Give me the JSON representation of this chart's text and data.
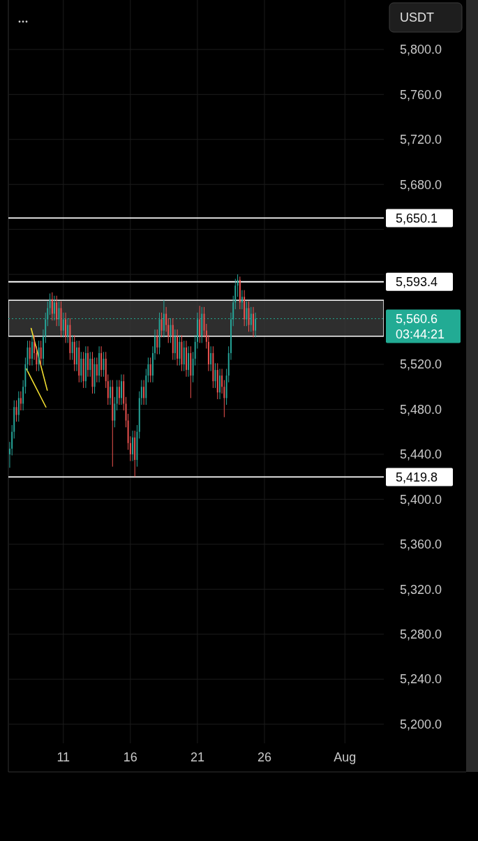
{
  "chart_data": {
    "type": "candlestick",
    "ylabel": "USDT",
    "x": [
      7,
      7.17,
      7.33,
      7.5,
      7.67,
      7.83,
      8,
      8.17,
      8.33,
      8.5,
      8.67,
      8.83,
      9,
      9.17,
      9.33,
      9.5,
      9.67,
      9.83,
      10,
      10.17,
      10.33,
      10.5,
      10.67,
      10.83,
      11,
      11.17,
      11.33,
      11.5,
      11.67,
      11.83,
      12,
      12.17,
      12.33,
      12.5,
      12.67,
      12.83,
      13,
      13.17,
      13.33,
      13.5,
      13.67,
      13.83,
      14,
      14.17,
      14.33,
      14.5,
      14.67,
      14.83,
      15,
      15.17,
      15.33,
      15.5,
      15.67,
      15.83,
      16,
      16.17,
      16.33,
      16.5,
      16.67,
      16.83,
      17,
      17.17,
      17.33,
      17.5,
      17.67,
      17.83,
      18,
      18.17,
      18.33,
      18.5,
      18.67,
      18.83,
      19,
      19.17,
      19.33,
      19.5,
      19.67,
      19.83,
      20,
      20.17,
      20.33,
      20.5,
      20.67,
      20.83,
      21,
      21.17,
      21.33,
      21.5,
      21.67,
      21.83,
      22,
      22.17,
      22.33,
      22.5,
      22.67,
      22.83,
      23,
      23.17,
      23.33,
      23.5,
      23.67,
      23.83,
      24,
      24.17,
      24.33,
      24.5,
      24.67,
      24.83,
      25,
      25.17,
      25.33
    ],
    "ohlc": [
      [
        5440,
        5451,
        5428,
        5445
      ],
      [
        5445,
        5466,
        5439,
        5460
      ],
      [
        5460,
        5488,
        5454,
        5482
      ],
      [
        5482,
        5488,
        5469,
        5475
      ],
      [
        5475,
        5496,
        5469,
        5490
      ],
      [
        5490,
        5496,
        5479,
        5485
      ],
      [
        5485,
        5506,
        5479,
        5500
      ],
      [
        5500,
        5526,
        5494,
        5520
      ],
      [
        5520,
        5541,
        5514,
        5535
      ],
      [
        5535,
        5541,
        5519,
        5525
      ],
      [
        5525,
        5546,
        5519,
        5540
      ],
      [
        5540,
        5546,
        5524,
        5530
      ],
      [
        5530,
        5536,
        5514,
        5520
      ],
      [
        5520,
        5541,
        5514,
        5535
      ],
      [
        5535,
        5541,
        5519,
        5525
      ],
      [
        5525,
        5551,
        5519,
        5545
      ],
      [
        5545,
        5566,
        5539,
        5560
      ],
      [
        5560,
        5576,
        5554,
        5570
      ],
      [
        5570,
        5583,
        5564,
        5578
      ],
      [
        5578,
        5584,
        5559,
        5565
      ],
      [
        5565,
        5581,
        5559,
        5575
      ],
      [
        5575,
        5581,
        5554,
        5560
      ],
      [
        5560,
        5576,
        5554,
        5570
      ],
      [
        5570,
        5576,
        5544,
        5550
      ],
      [
        5550,
        5566,
        5544,
        5560
      ],
      [
        5560,
        5566,
        5539,
        5545
      ],
      [
        5545,
        5561,
        5539,
        5555
      ],
      [
        5555,
        5561,
        5524,
        5530
      ],
      [
        5530,
        5546,
        5524,
        5540
      ],
      [
        5540,
        5546,
        5514,
        5520
      ],
      [
        5520,
        5541,
        5514,
        5535
      ],
      [
        5535,
        5541,
        5504,
        5510
      ],
      [
        5510,
        5531,
        5504,
        5525
      ],
      [
        5525,
        5531,
        5499,
        5505
      ],
      [
        5505,
        5536,
        5499,
        5530
      ],
      [
        5530,
        5536,
        5509,
        5515
      ],
      [
        5515,
        5531,
        5509,
        5525
      ],
      [
        5525,
        5531,
        5494,
        5500
      ],
      [
        5500,
        5526,
        5494,
        5520
      ],
      [
        5520,
        5526,
        5504,
        5510
      ],
      [
        5510,
        5536,
        5504,
        5530
      ],
      [
        5530,
        5536,
        5509,
        5515
      ],
      [
        5515,
        5531,
        5509,
        5525
      ],
      [
        5525,
        5531,
        5499,
        5505
      ],
      [
        5505,
        5511,
        5484,
        5490
      ],
      [
        5490,
        5506,
        5484,
        5500
      ],
      [
        5500,
        5506,
        5429,
        5470
      ],
      [
        5470,
        5491,
        5464,
        5485
      ],
      [
        5485,
        5506,
        5479,
        5500
      ],
      [
        5500,
        5506,
        5484,
        5490
      ],
      [
        5490,
        5511,
        5484,
        5505
      ],
      [
        5505,
        5511,
        5479,
        5485
      ],
      [
        5485,
        5491,
        5464,
        5470
      ],
      [
        5470,
        5476,
        5444,
        5450
      ],
      [
        5450,
        5456,
        5434,
        5440
      ],
      [
        5440,
        5461,
        5434,
        5455
      ],
      [
        5455,
        5461,
        5420,
        5435
      ],
      [
        5435,
        5466,
        5429,
        5460
      ],
      [
        5460,
        5496,
        5454,
        5490
      ],
      [
        5490,
        5506,
        5484,
        5500
      ],
      [
        5500,
        5506,
        5484,
        5490
      ],
      [
        5490,
        5516,
        5484,
        5510
      ],
      [
        5510,
        5526,
        5504,
        5520
      ],
      [
        5520,
        5526,
        5504,
        5510
      ],
      [
        5510,
        5536,
        5504,
        5530
      ],
      [
        5530,
        5551,
        5524,
        5545
      ],
      [
        5545,
        5551,
        5529,
        5535
      ],
      [
        5535,
        5566,
        5529,
        5560
      ],
      [
        5560,
        5566,
        5544,
        5550
      ],
      [
        5550,
        5577,
        5544,
        5565
      ],
      [
        5565,
        5571,
        5549,
        5555
      ],
      [
        5555,
        5561,
        5539,
        5545
      ],
      [
        5545,
        5561,
        5539,
        5555
      ],
      [
        5555,
        5561,
        5524,
        5530
      ],
      [
        5530,
        5551,
        5524,
        5545
      ],
      [
        5545,
        5551,
        5519,
        5525
      ],
      [
        5525,
        5546,
        5519,
        5540
      ],
      [
        5540,
        5546,
        5514,
        5520
      ],
      [
        5520,
        5541,
        5514,
        5535
      ],
      [
        5535,
        5541,
        5509,
        5515
      ],
      [
        5515,
        5536,
        5509,
        5530
      ],
      [
        5530,
        5536,
        5490,
        5510
      ],
      [
        5510,
        5531,
        5504,
        5525
      ],
      [
        5525,
        5546,
        5519,
        5540
      ],
      [
        5540,
        5566,
        5534,
        5560
      ],
      [
        5560,
        5572,
        5539,
        5545
      ],
      [
        5545,
        5571,
        5539,
        5565
      ],
      [
        5565,
        5571,
        5544,
        5550
      ],
      [
        5550,
        5556,
        5534,
        5540
      ],
      [
        5540,
        5546,
        5514,
        5520
      ],
      [
        5520,
        5536,
        5514,
        5530
      ],
      [
        5530,
        5536,
        5499,
        5505
      ],
      [
        5505,
        5521,
        5499,
        5515
      ],
      [
        5515,
        5521,
        5489,
        5495
      ],
      [
        5495,
        5516,
        5489,
        5510
      ],
      [
        5510,
        5516,
        5494,
        5500
      ],
      [
        5500,
        5506,
        5473,
        5490
      ],
      [
        5490,
        5516,
        5484,
        5510
      ],
      [
        5510,
        5536,
        5504,
        5530
      ],
      [
        5530,
        5566,
        5524,
        5560
      ],
      [
        5560,
        5581,
        5554,
        5575
      ],
      [
        5575,
        5596,
        5569,
        5590
      ],
      [
        5590,
        5600,
        5580,
        5595
      ],
      [
        5595,
        5598,
        5569,
        5575
      ],
      [
        5575,
        5586,
        5569,
        5580
      ],
      [
        5580,
        5586,
        5554,
        5560
      ],
      [
        5560,
        5576,
        5554,
        5570
      ],
      [
        5570,
        5576,
        5549,
        5555
      ],
      [
        5555,
        5571,
        5549,
        5565
      ],
      [
        5565,
        5571,
        5544,
        5550
      ],
      [
        5550,
        5566,
        5544,
        5560.6
      ]
    ],
    "series": [
      {
        "type": "line",
        "color": "#f5e132",
        "x": [
          8.6,
          9.8
        ],
        "values": [
          5552,
          5497
        ]
      },
      {
        "type": "line",
        "color": "#f5e132",
        "x": [
          8.24,
          9.7
        ],
        "values": [
          5516,
          5482
        ]
      }
    ],
    "xlim": [
      6.9,
      34.9
    ],
    "xticks": [
      11,
      16,
      21,
      26,
      {
        "value": 32,
        "label": "Aug"
      }
    ],
    "ylim": [
      5183,
      5844
    ],
    "yticks": [
      {
        "value": 5800,
        "label": "5,800.0"
      },
      {
        "value": 5760,
        "label": "5,760.0"
      },
      {
        "value": 5720,
        "label": "5,720.0"
      },
      {
        "value": 5680,
        "label": "5,680.0"
      },
      {
        "value": 5640,
        "label": null
      },
      {
        "value": 5600,
        "label": null
      },
      {
        "value": 5520,
        "label": "5,520.0"
      },
      {
        "value": 5480,
        "label": "5,480.0"
      },
      {
        "value": 5440,
        "label": "5,440.0"
      },
      {
        "value": 5400,
        "label": "5,400.0"
      },
      {
        "value": 5360,
        "label": "5,360.0"
      },
      {
        "value": 5320,
        "label": "5,320.0"
      },
      {
        "value": 5280,
        "label": "5,280.0"
      },
      {
        "value": 5240,
        "label": "5,240.0"
      },
      {
        "value": 5200,
        "label": "5,200.0"
      }
    ],
    "grid": true,
    "ref_lines": [
      {
        "axis": "y",
        "value": 5650.1,
        "label": "5,650.1",
        "color": "#ffffff"
      },
      {
        "axis": "y",
        "value": 5593.4,
        "label": "5,593.4",
        "color": "#ffffff"
      },
      {
        "axis": "y",
        "value": 5419.8,
        "label": "5,419.8",
        "color": "#ffffff"
      },
      {
        "axis": "y",
        "value": 5560.6,
        "label": "5,560.6",
        "color": "#22ab94",
        "line_style": "dotted"
      }
    ],
    "bands": [
      {
        "axis": "y",
        "from": 5545,
        "to": 5577,
        "color": "#3a3a3a"
      }
    ],
    "annotations": [
      "03:44:21"
    ]
  }
}
